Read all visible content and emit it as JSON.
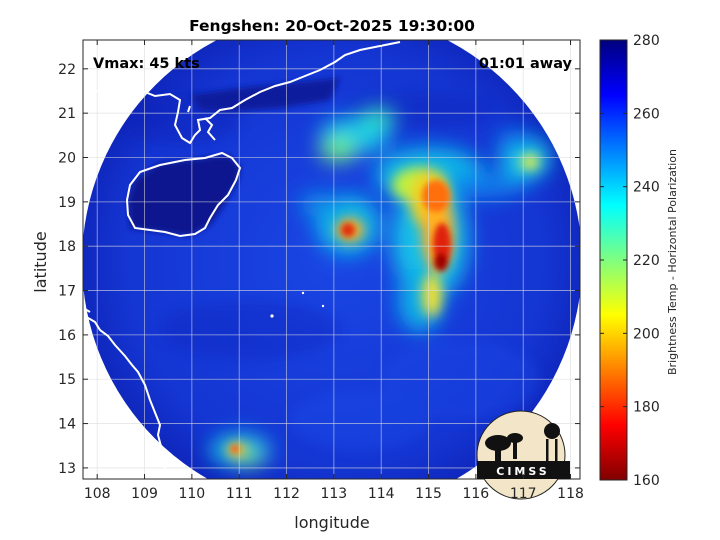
{
  "title": "Fengshen: 20-Oct-2025 19:30:00",
  "annotations": {
    "vmax": "Vmax: 45 kts",
    "time_away": "01:01 away"
  },
  "x_axis": {
    "label": "longitude",
    "ticks": [
      "108",
      "109",
      "110",
      "111",
      "112",
      "113",
      "114",
      "115",
      "116",
      "117",
      "118"
    ]
  },
  "y_axis": {
    "label": "latitude",
    "ticks": [
      "22",
      "21",
      "20",
      "19",
      "18",
      "17",
      "16",
      "15",
      "14",
      "13"
    ]
  },
  "colorbar": {
    "label": "Brightness Temp - Horizontal Polarization",
    "ticks": [
      "280",
      "260",
      "240",
      "220",
      "200",
      "180",
      "160"
    ]
  },
  "logo": {
    "text": "CIMSS"
  },
  "chart_data": {
    "type": "heatmap",
    "title": "Fengshen: 20-Oct-2025 19:30:00",
    "xlabel": "longitude",
    "ylabel": "latitude",
    "xlim": [
      107.7,
      118.2
    ],
    "ylim": [
      12.75,
      22.65
    ],
    "clim": [
      160,
      280
    ],
    "colormap": "jet (reversed: dark red = 160, dark blue = 280)",
    "grid": true,
    "colorbar_label": "Brightness Temp - Horizontal Polarization",
    "swath": {
      "center_lon": 112.95,
      "center_lat": 17.7,
      "shape": "circular"
    },
    "features": [
      {
        "name": "core",
        "lon": 115.25,
        "lat": 17.7,
        "temp": 165
      },
      {
        "name": "core",
        "lon": 115.2,
        "lat": 18.2,
        "temp": 180
      },
      {
        "name": "band",
        "lon": 115.1,
        "lat": 19.2,
        "temp": 190
      },
      {
        "name": "convection",
        "lon": 113.2,
        "lat": 18.45,
        "temp": 185
      },
      {
        "name": "band",
        "lon": 115.0,
        "lat": 16.7,
        "temp": 200
      },
      {
        "name": "convection",
        "lon": 117.0,
        "lat": 19.95,
        "temp": 215
      },
      {
        "name": "convection",
        "lon": 110.9,
        "lat": 13.35,
        "temp": 200
      }
    ],
    "colors": {
      "background_low": "#00007f",
      "swath_base": "#1436d8",
      "frame": "#000000"
    }
  }
}
